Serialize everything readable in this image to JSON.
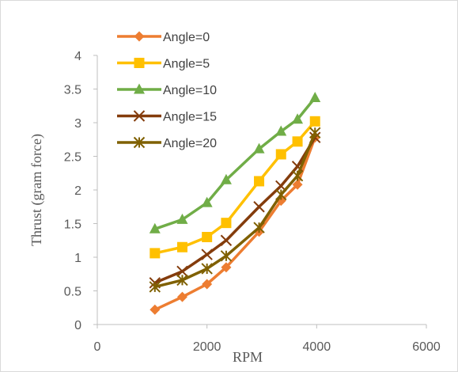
{
  "chart_data": {
    "type": "line",
    "xlabel": "RPM",
    "ylabel": "Thrust (gram force)",
    "xlim": [
      0,
      6000
    ],
    "ylim": [
      0,
      4
    ],
    "xticks": [
      0,
      2000,
      4000,
      6000
    ],
    "yticks": [
      0,
      0.5,
      1,
      1.5,
      2,
      2.5,
      3,
      3.5,
      4
    ],
    "grid": false,
    "legend_position": "top-left",
    "series": [
      {
        "name": "Angle=0",
        "color": "#ed7d31",
        "marker": "diamond",
        "points": [
          [
            1050,
            0.22
          ],
          [
            1550,
            0.41
          ],
          [
            2000,
            0.6
          ],
          [
            2350,
            0.85
          ],
          [
            2950,
            1.38
          ],
          [
            3350,
            1.84
          ],
          [
            3650,
            2.08
          ],
          [
            3970,
            2.78
          ]
        ]
      },
      {
        "name": "Angle=5",
        "color": "#ffc000",
        "marker": "square",
        "points": [
          [
            1050,
            1.06
          ],
          [
            1550,
            1.15
          ],
          [
            2000,
            1.3
          ],
          [
            2350,
            1.51
          ],
          [
            2950,
            2.13
          ],
          [
            3350,
            2.53
          ],
          [
            3650,
            2.72
          ],
          [
            3970,
            3.02
          ]
        ]
      },
      {
        "name": "Angle=10",
        "color": "#70ad47",
        "marker": "triangle",
        "points": [
          [
            1050,
            1.42
          ],
          [
            1550,
            1.56
          ],
          [
            2000,
            1.81
          ],
          [
            2350,
            2.15
          ],
          [
            2950,
            2.61
          ],
          [
            3350,
            2.87
          ],
          [
            3650,
            3.05
          ],
          [
            3970,
            3.37
          ]
        ]
      },
      {
        "name": "Angle=15",
        "color": "#843c0c",
        "marker": "x",
        "points": [
          [
            1050,
            0.62
          ],
          [
            1550,
            0.79
          ],
          [
            2000,
            1.04
          ],
          [
            2350,
            1.25
          ],
          [
            2950,
            1.75
          ],
          [
            3350,
            2.06
          ],
          [
            3650,
            2.35
          ],
          [
            3970,
            2.78
          ]
        ]
      },
      {
        "name": "Angle=20",
        "color": "#7f6000",
        "marker": "star",
        "points": [
          [
            1050,
            0.56
          ],
          [
            1550,
            0.66
          ],
          [
            2000,
            0.83
          ],
          [
            2350,
            1.02
          ],
          [
            2950,
            1.44
          ],
          [
            3350,
            1.93
          ],
          [
            3650,
            2.21
          ],
          [
            3970,
            2.85
          ]
        ]
      }
    ]
  }
}
